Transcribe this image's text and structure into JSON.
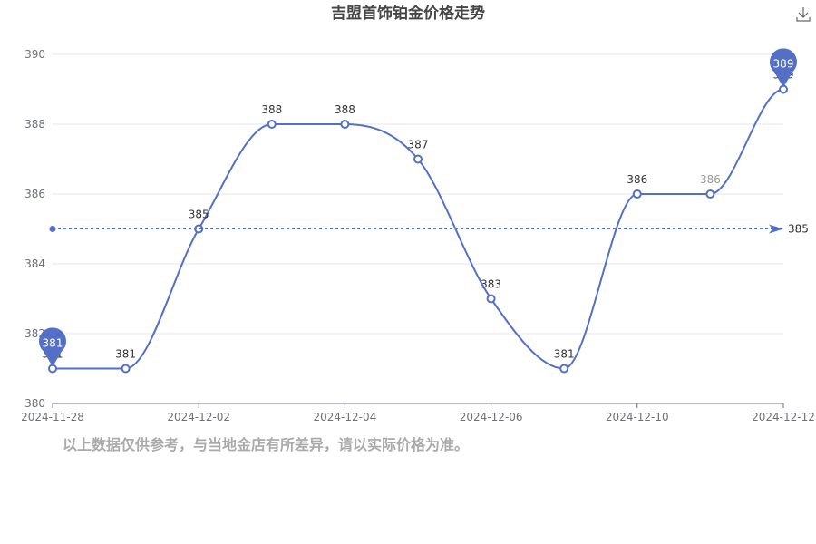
{
  "chart_data": {
    "type": "line",
    "title": "吉盟首饰铂金价格走势",
    "categories": [
      "2024-11-28",
      "",
      "2024-12-02",
      "",
      "2024-12-04",
      "",
      "2024-12-06",
      "",
      "2024-12-10",
      "",
      "2024-12-12"
    ],
    "x_tick_labels": [
      "2024-11-28",
      "2024-12-02",
      "2024-12-04",
      "2024-12-06",
      "2024-12-10",
      "2024-12-12"
    ],
    "values": [
      381,
      381,
      385,
      388,
      388,
      387,
      383,
      381,
      386,
      386,
      389
    ],
    "ylim": [
      380,
      390
    ],
    "y_ticks": [
      380,
      382,
      384,
      386,
      388,
      390
    ],
    "smooth": true,
    "grid": true,
    "series_color": "#5470c6",
    "mark_points": [
      {
        "type": "max",
        "value": 389
      },
      {
        "type": "min",
        "value": 381
      }
    ],
    "mark_line": {
      "type": "average",
      "value": 385
    }
  },
  "note": "以上数据仅供参考，与当地金店有所差异，请以实际价格为准。",
  "toolbox": {
    "icon": "download-icon"
  }
}
